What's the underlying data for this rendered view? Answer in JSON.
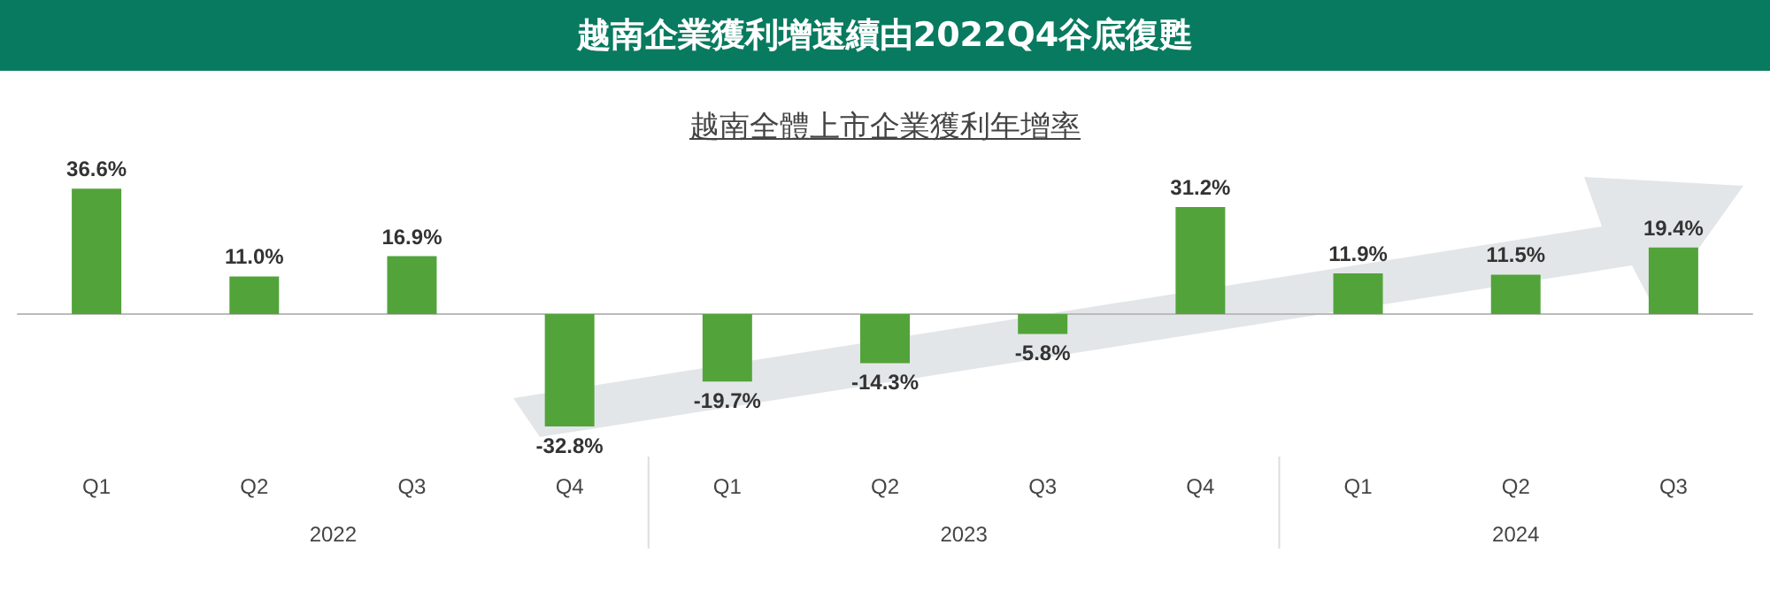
{
  "chart_data": {
    "type": "bar",
    "title": "越南企業獲利增速續由2022Q4谷底復甦",
    "subtitle": "越南全體上市企業獲利年增率",
    "categories": [
      "Q1",
      "Q2",
      "Q3",
      "Q4",
      "Q1",
      "Q2",
      "Q3",
      "Q4",
      "Q1",
      "Q2",
      "Q3"
    ],
    "values": [
      36.6,
      11.0,
      16.9,
      -32.8,
      -19.7,
      -14.3,
      -5.8,
      31.2,
      11.9,
      11.5,
      19.4
    ],
    "value_labels": [
      "36.6%",
      "11.0%",
      "16.9%",
      "-32.8%",
      "-19.7%",
      "-14.3%",
      "-5.8%",
      "31.2%",
      "11.9%",
      "11.5%",
      "19.4%"
    ],
    "color": "#53a33b",
    "annotations": [
      "2022",
      "2023",
      "2024"
    ]
  }
}
